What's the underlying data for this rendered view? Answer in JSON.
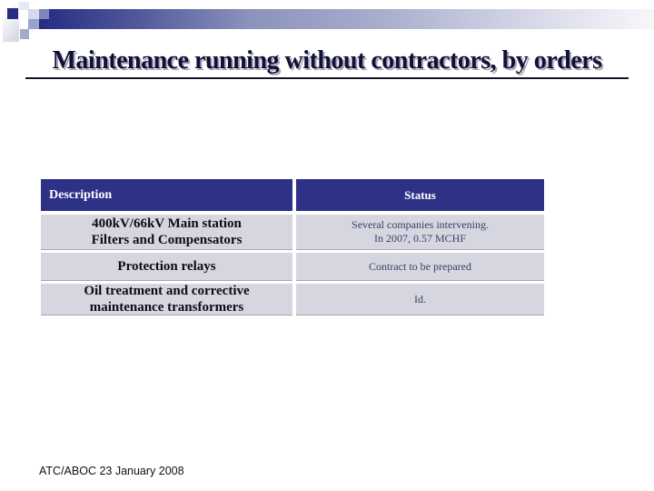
{
  "title": "Maintenance running without contractors, by orders",
  "table": {
    "headers": [
      "Description",
      "Status"
    ],
    "rows": [
      {
        "description": "400kV/66kV Main station\nFilters and Compensators",
        "status": "Several companies intervening.\nIn 2007, 0.57 MCHF"
      },
      {
        "description": "Protection relays",
        "status": "Contract to be prepared"
      },
      {
        "description": "Oil treatment and corrective\nmaintenance transformers",
        "status": "Id."
      }
    ]
  },
  "footer": "ATC/ABOC 23 January 2008",
  "colors": {
    "table_header_bg": "#2e3287",
    "table_header_text": "#ffffff",
    "table_row_bg": "#d6d6e1",
    "bar_gradient_start": "#262c85",
    "title_text": "#10103a"
  }
}
